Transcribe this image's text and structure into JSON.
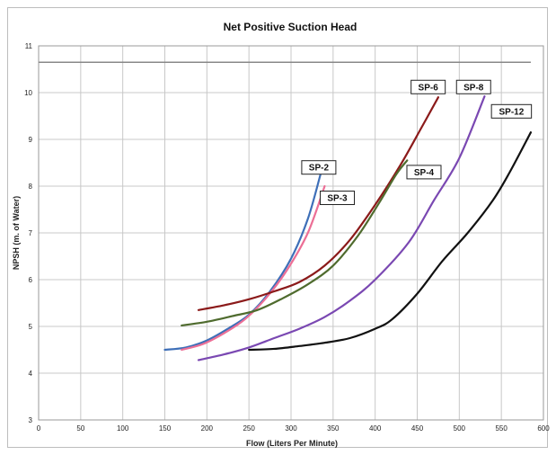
{
  "chart_data": {
    "type": "line",
    "title": "Net Positive Suction Head",
    "xlabel": "Flow (Liters Per Minute)",
    "ylabel": "NPSH  (m. of Water)",
    "xlim": [
      0,
      600
    ],
    "ylim": [
      3,
      11
    ],
    "xticks": [
      0,
      50,
      100,
      150,
      200,
      250,
      300,
      350,
      400,
      450,
      500,
      550,
      600
    ],
    "yticks": [
      3,
      4,
      5,
      6,
      7,
      8,
      9,
      10,
      11
    ],
    "grid": true,
    "reference_line": {
      "y": 10.65
    },
    "colors": {
      "grid": "#c8c8c8",
      "reference": "#888888",
      "frame": "#bdbdbd"
    },
    "series": [
      {
        "name": "SP-2",
        "color": "#3e6fb8",
        "label_at": [
          333,
          8.4
        ],
        "points": [
          [
            150,
            4.5
          ],
          [
            175,
            4.55
          ],
          [
            200,
            4.7
          ],
          [
            225,
            4.95
          ],
          [
            250,
            5.25
          ],
          [
            275,
            5.75
          ],
          [
            300,
            6.45
          ],
          [
            320,
            7.3
          ],
          [
            335,
            8.25
          ]
        ]
      },
      {
        "name": "SP-3",
        "color": "#ec6f96",
        "label_at": [
          355,
          7.75
        ],
        "points": [
          [
            170,
            4.5
          ],
          [
            195,
            4.62
          ],
          [
            220,
            4.85
          ],
          [
            245,
            5.15
          ],
          [
            270,
            5.6
          ],
          [
            295,
            6.2
          ],
          [
            320,
            7.0
          ],
          [
            340,
            8.0
          ]
        ]
      },
      {
        "name": "SP-6",
        "color": "#8b1a1a",
        "label_at": [
          463,
          10.12
        ],
        "points": [
          [
            190,
            5.35
          ],
          [
            220,
            5.45
          ],
          [
            250,
            5.58
          ],
          [
            280,
            5.75
          ],
          [
            310,
            5.95
          ],
          [
            340,
            6.3
          ],
          [
            370,
            6.85
          ],
          [
            400,
            7.6
          ],
          [
            430,
            8.45
          ],
          [
            455,
            9.25
          ],
          [
            475,
            9.9
          ]
        ]
      },
      {
        "name": "SP-4",
        "color": "#4f6b2e",
        "label_at": [
          458,
          8.3
        ],
        "points": [
          [
            170,
            5.02
          ],
          [
            200,
            5.1
          ],
          [
            230,
            5.22
          ],
          [
            260,
            5.35
          ],
          [
            290,
            5.6
          ],
          [
            320,
            5.9
          ],
          [
            350,
            6.3
          ],
          [
            380,
            6.95
          ],
          [
            405,
            7.65
          ],
          [
            425,
            8.25
          ],
          [
            438,
            8.55
          ]
        ]
      },
      {
        "name": "SP-8",
        "color": "#7a48b2",
        "label_at": [
          517,
          10.12
        ],
        "points": [
          [
            190,
            4.28
          ],
          [
            220,
            4.4
          ],
          [
            250,
            4.55
          ],
          [
            280,
            4.75
          ],
          [
            310,
            4.95
          ],
          [
            340,
            5.2
          ],
          [
            370,
            5.55
          ],
          [
            400,
            6.0
          ],
          [
            440,
            6.8
          ],
          [
            470,
            7.7
          ],
          [
            500,
            8.6
          ],
          [
            530,
            9.92
          ]
        ]
      },
      {
        "name": "SP-12",
        "color": "#111111",
        "label_at": [
          562,
          9.6
        ],
        "points": [
          [
            250,
            4.5
          ],
          [
            280,
            4.52
          ],
          [
            310,
            4.58
          ],
          [
            340,
            4.65
          ],
          [
            370,
            4.75
          ],
          [
            400,
            4.95
          ],
          [
            420,
            5.15
          ],
          [
            450,
            5.7
          ],
          [
            480,
            6.4
          ],
          [
            510,
            7.0
          ],
          [
            540,
            7.7
          ],
          [
            560,
            8.3
          ],
          [
            585,
            9.15
          ]
        ]
      }
    ]
  }
}
